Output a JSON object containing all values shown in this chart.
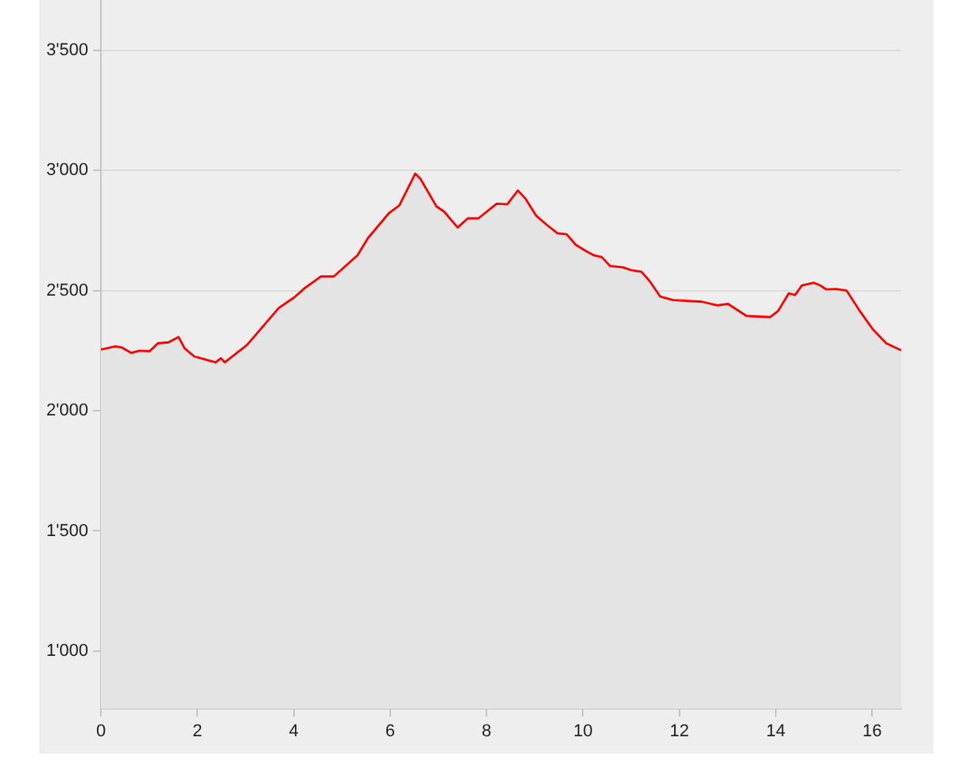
{
  "chart_data": {
    "type": "area",
    "x": [
      0,
      0.3,
      0.44,
      0.63,
      0.8,
      1.01,
      1.18,
      1.4,
      1.61,
      1.74,
      1.94,
      2.38,
      2.49,
      2.57,
      3.03,
      3.36,
      3.69,
      4.01,
      4.23,
      4.56,
      4.83,
      5.32,
      5.54,
      5.98,
      6.19,
      6.52,
      6.63,
      6.96,
      7.12,
      7.4,
      7.61,
      7.83,
      8.21,
      8.43,
      8.65,
      8.81,
      9.03,
      9.25,
      9.47,
      9.66,
      9.85,
      10.07,
      10.23,
      10.39,
      10.56,
      10.83,
      10.99,
      11.21,
      11.38,
      11.6,
      11.87,
      12.47,
      12.79,
      13.01,
      13.39,
      13.88,
      14.05,
      14.27,
      14.4,
      14.54,
      14.79,
      14.92,
      15.05,
      15.25,
      15.47,
      15.74,
      16.01,
      16.29,
      16.6
    ],
    "series": [
      {
        "color": "#ff0000",
        "values": [
          2255,
          2268,
          2263,
          2241,
          2250,
          2248,
          2281,
          2285,
          2307,
          2259,
          2226,
          2202,
          2219,
          2202,
          2274,
          2351,
          2428,
          2472,
          2511,
          2559,
          2559,
          2647,
          2719,
          2824,
          2855,
          2987,
          2965,
          2851,
          2829,
          2763,
          2801,
          2801,
          2862,
          2860,
          2917,
          2882,
          2812,
          2774,
          2739,
          2735,
          2691,
          2664,
          2647,
          2640,
          2603,
          2597,
          2586,
          2579,
          2541,
          2476,
          2461,
          2454,
          2439,
          2445,
          2395,
          2390,
          2416,
          2489,
          2482,
          2522,
          2533,
          2522,
          2505,
          2507,
          2500,
          2416,
          2340,
          2281,
          2252
        ]
      }
    ],
    "xlim": [
      0,
      16.6
    ],
    "xticks": [
      0,
      2,
      4,
      6,
      8,
      10,
      12,
      14,
      16
    ],
    "ylim": [
      760,
      3710
    ],
    "yticks": [
      {
        "value": 1000,
        "label": "1'000"
      },
      {
        "value": 1500,
        "label": "1'500"
      },
      {
        "value": 2000,
        "label": "2'000"
      },
      {
        "value": 2500,
        "label": "2'500"
      },
      {
        "value": 3000,
        "label": "3'000"
      },
      {
        "value": 3500,
        "label": "3'500"
      }
    ],
    "grid": "y"
  }
}
